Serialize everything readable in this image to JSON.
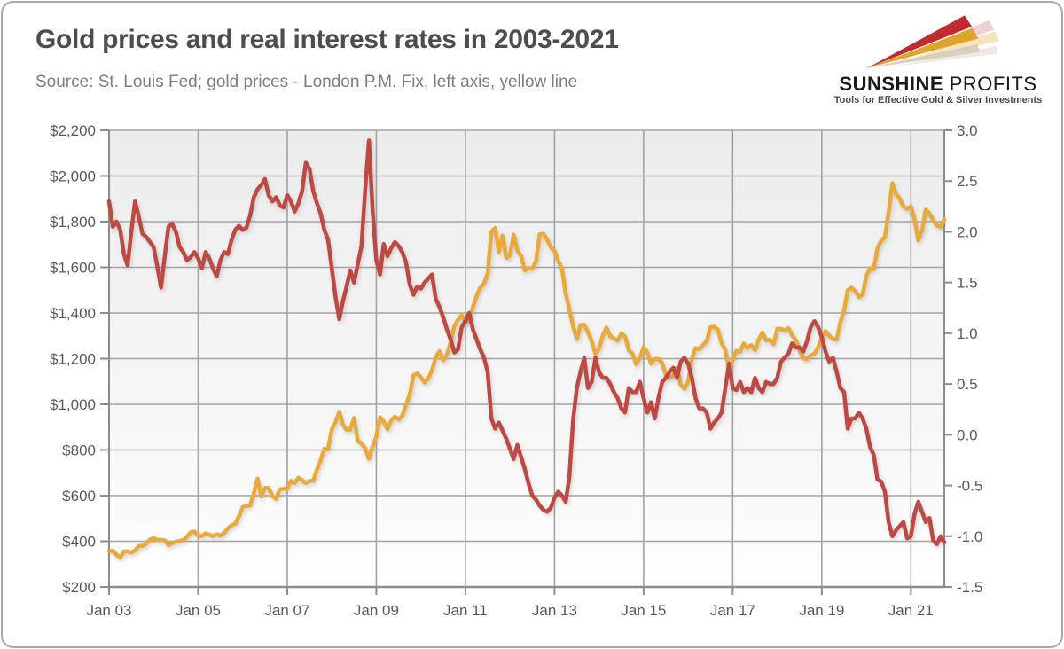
{
  "header": {
    "title": "Gold prices and real interest rates in 2003-2021",
    "subtitle": "Source: St. Louis Fed; gold prices - London P.M. Fix, left axis, yellow line"
  },
  "logo": {
    "brand_bold": "SUNSHINE",
    "brand_light": " PROFITS",
    "tagline": "Tools for Effective Gold & Silver Investments",
    "colors": {
      "red": "#C12B2E",
      "gold": "#DFA42C",
      "beige": "#D9CFBF"
    }
  },
  "chart_data": {
    "type": "line",
    "title": "Gold prices and real interest rates in 2003-2021",
    "frequency": "monthly",
    "x_start": "Jan 2003",
    "x_end": "Oct 2021",
    "grid": true,
    "legend_position": "none",
    "colors": {
      "gridline": "#a3a3a3",
      "axis": "#8c8c8c",
      "tick_text": "#595959"
    },
    "x_ticks": [
      {
        "label": "Jan 03",
        "i": 0
      },
      {
        "label": "Jan 05",
        "i": 24
      },
      {
        "label": "Jan 07",
        "i": 48
      },
      {
        "label": "Jan 09",
        "i": 72
      },
      {
        "label": "Jan 11",
        "i": 96
      },
      {
        "label": "Jan 13",
        "i": 120
      },
      {
        "label": "Jan 15",
        "i": 144
      },
      {
        "label": "Jan 17",
        "i": 168
      },
      {
        "label": "Jan 19",
        "i": 192
      },
      {
        "label": "Jan 21",
        "i": 216
      }
    ],
    "left_axis": {
      "min": 200,
      "max": 2200,
      "ticks": [
        {
          "value": 200,
          "label": "$200"
        },
        {
          "value": 400,
          "label": "$400"
        },
        {
          "value": 600,
          "label": "$600"
        },
        {
          "value": 800,
          "label": "$800"
        },
        {
          "value": 1000,
          "label": "$1,000"
        },
        {
          "value": 1200,
          "label": "$1,200"
        },
        {
          "value": 1400,
          "label": "$1,400"
        },
        {
          "value": 1600,
          "label": "$1,600"
        },
        {
          "value": 1800,
          "label": "$1,800"
        },
        {
          "value": 2000,
          "label": "$2,000"
        },
        {
          "value": 2200,
          "label": "$2,200"
        }
      ]
    },
    "right_axis": {
      "min": -1.5,
      "max": 3.0,
      "ticks": [
        {
          "value": -1.5,
          "label": "-1.5"
        },
        {
          "value": -1.0,
          "label": "-1.0"
        },
        {
          "value": -0.5,
          "label": "-0.5"
        },
        {
          "value": 0.0,
          "label": "0.0"
        },
        {
          "value": 0.5,
          "label": "0.5"
        },
        {
          "value": 1.0,
          "label": "1.0"
        },
        {
          "value": 1.5,
          "label": "1.5"
        },
        {
          "value": 2.0,
          "label": "2.0"
        },
        {
          "value": 2.5,
          "label": "2.5"
        },
        {
          "value": 3.0,
          "label": "3.0"
        }
      ]
    },
    "series": [
      {
        "name": "Gold price - London P.M. Fix (USD, left axis, yellow line)",
        "axis": "left",
        "color": "#E9A93A",
        "values": [
          357,
          359,
          341,
          328,
          355,
          356,
          351,
          360,
          379,
          379,
          390,
          407,
          414,
          405,
          406,
          404,
          383,
          392,
          398,
          401,
          405,
          420,
          439,
          442,
          424,
          423,
          434,
          429,
          422,
          431,
          424,
          437,
          456,
          470,
          477,
          510,
          550,
          555,
          557,
          611,
          675,
          596,
          634,
          633,
          598,
          586,
          628,
          630,
          631,
          665,
          655,
          679,
          667,
          655,
          665,
          665,
          713,
          755,
          805,
          803,
          890,
          922,
          968,
          910,
          889,
          889,
          940,
          839,
          829,
          807,
          761,
          816,
          858,
          943,
          924,
          890,
          929,
          946,
          934,
          949,
          997,
          1043,
          1127,
          1135,
          1118,
          1095,
          1113,
          1149,
          1205,
          1233,
          1193,
          1216,
          1271,
          1342,
          1370,
          1391,
          1356,
          1373,
          1424,
          1474,
          1511,
          1529,
          1573,
          1756,
          1772,
          1666,
          1739,
          1641,
          1654,
          1743,
          1674,
          1650,
          1586,
          1597,
          1594,
          1626,
          1744,
          1747,
          1721,
          1688,
          1671,
          1627,
          1593,
          1485,
          1414,
          1343,
          1286,
          1347,
          1348,
          1316,
          1276,
          1221,
          1244,
          1301,
          1336,
          1298,
          1289,
          1279,
          1311,
          1297,
          1237,
          1222,
          1176,
          1201,
          1250,
          1227,
          1178,
          1198,
          1199,
          1181,
          1128,
          1117,
          1125,
          1159,
          1086,
          1068,
          1098,
          1200,
          1246,
          1242,
          1261,
          1276,
          1337,
          1340,
          1327,
          1267,
          1238,
          1157,
          1192,
          1234,
          1231,
          1266,
          1246,
          1260,
          1237,
          1283,
          1314,
          1280,
          1282,
          1264,
          1331,
          1330,
          1324,
          1334,
          1303,
          1282,
          1238,
          1201,
          1198,
          1215,
          1221,
          1250,
          1291,
          1320,
          1301,
          1286,
          1284,
          1359,
          1413,
          1500,
          1511,
          1495,
          1471,
          1480,
          1561,
          1597,
          1592,
          1683,
          1716,
          1732,
          1843,
          1969,
          1922,
          1900,
          1866,
          1856,
          1867,
          1808,
          1718,
          1762,
          1853,
          1835,
          1807,
          1784,
          1777,
          1810
        ]
      },
      {
        "name": "Real interest rate (%, right axis, red line)",
        "axis": "right",
        "color": "#BE4843",
        "values": [
          2.3,
          2.05,
          2.1,
          2.02,
          1.78,
          1.67,
          2.0,
          2.3,
          2.15,
          1.98,
          1.95,
          1.9,
          1.85,
          1.66,
          1.45,
          1.76,
          2.05,
          2.08,
          2.0,
          1.85,
          1.8,
          1.72,
          1.75,
          1.8,
          1.74,
          1.64,
          1.8,
          1.74,
          1.64,
          1.56,
          1.72,
          1.8,
          1.78,
          1.92,
          2.02,
          2.06,
          2.02,
          2.04,
          2.16,
          2.34,
          2.42,
          2.46,
          2.52,
          2.36,
          2.3,
          2.34,
          2.26,
          2.24,
          2.36,
          2.3,
          2.2,
          2.28,
          2.4,
          2.68,
          2.62,
          2.4,
          2.28,
          2.18,
          2.02,
          1.92,
          1.64,
          1.36,
          1.14,
          1.32,
          1.46,
          1.62,
          1.5,
          1.68,
          1.86,
          2.42,
          2.9,
          2.2,
          1.72,
          1.58,
          1.88,
          1.76,
          1.84,
          1.9,
          1.86,
          1.8,
          1.7,
          1.48,
          1.38,
          1.46,
          1.44,
          1.5,
          1.54,
          1.58,
          1.34,
          1.26,
          1.16,
          1.04,
          0.94,
          0.81,
          0.84,
          1.06,
          1.12,
          1.2,
          1.04,
          0.94,
          0.84,
          0.76,
          0.62,
          0.16,
          0.06,
          0.12,
          0.04,
          -0.04,
          -0.14,
          -0.24,
          -0.1,
          -0.22,
          -0.34,
          -0.48,
          -0.6,
          -0.64,
          -0.7,
          -0.74,
          -0.76,
          -0.72,
          -0.62,
          -0.56,
          -0.6,
          -0.66,
          -0.42,
          0.14,
          0.46,
          0.62,
          0.76,
          0.46,
          0.52,
          0.76,
          0.62,
          0.56,
          0.56,
          0.5,
          0.42,
          0.36,
          0.26,
          0.22,
          0.46,
          0.42,
          0.42,
          0.52,
          0.36,
          0.22,
          0.32,
          0.16,
          0.36,
          0.52,
          0.56,
          0.62,
          0.66,
          0.56,
          0.72,
          0.76,
          0.7,
          0.56,
          0.36,
          0.26,
          0.26,
          0.22,
          0.06,
          0.12,
          0.16,
          0.22,
          0.46,
          0.7,
          0.46,
          0.44,
          0.52,
          0.42,
          0.46,
          0.42,
          0.56,
          0.46,
          0.42,
          0.52,
          0.5,
          0.5,
          0.56,
          0.72,
          0.76,
          0.8,
          0.9,
          0.86,
          0.86,
          0.82,
          0.92,
          1.06,
          1.12,
          1.06,
          0.96,
          0.82,
          0.72,
          0.76,
          0.62,
          0.46,
          0.42,
          0.06,
          0.16,
          0.16,
          0.22,
          0.16,
          0.06,
          -0.12,
          -0.2,
          -0.44,
          -0.46,
          -0.56,
          -0.86,
          -1.0,
          -0.94,
          -0.9,
          -0.86,
          -1.02,
          -1.0,
          -0.78,
          -0.66,
          -0.76,
          -0.86,
          -0.82,
          -1.04,
          -1.08,
          -1.0,
          -1.06
        ]
      }
    ]
  }
}
